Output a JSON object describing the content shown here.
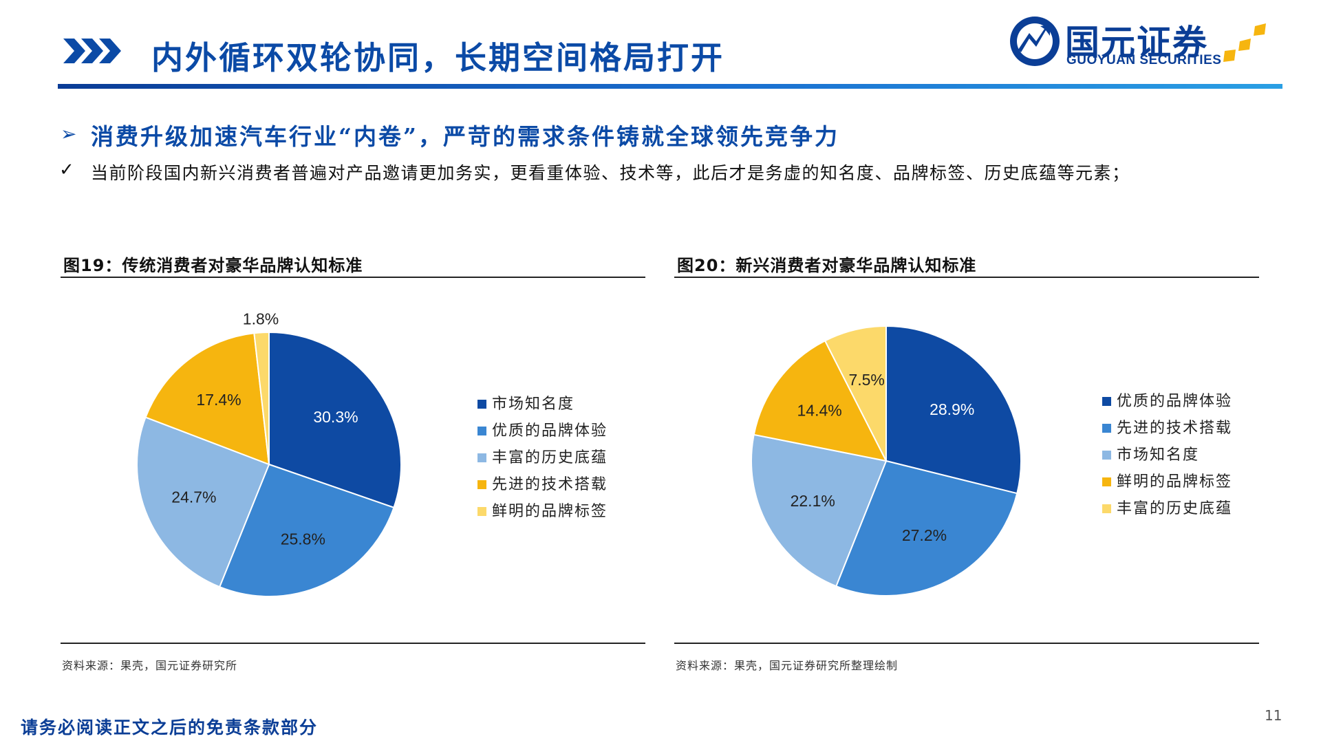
{
  "header": {
    "title": "内外循环双轮协同，长期空间格局打开",
    "logo_cn": "国元证券",
    "logo_en": "GUOYUAN SECURITIES"
  },
  "section": {
    "heading": "消费升级加速汽车行业“内卷”，严苛的需求条件铸就全球领先竞争力",
    "point": "当前阶段国内新兴消费者普遍对产品邀请更加务实，更看重体验、技术等，此后才是务虚的知名度、品牌标签、历史底蕴等元素；"
  },
  "figures": [
    {
      "caption": "图19：传统消费者对豪华品牌认知标准",
      "source": "资料来源：果壳，国元证券研究所"
    },
    {
      "caption": "图20：新兴消费者对豪华品牌认知标准",
      "source": "资料来源：果壳，国元证券研究所整理绘制"
    }
  ],
  "chart_data": [
    {
      "type": "pie",
      "title": "",
      "legend_position": "right",
      "slices": [
        {
          "label": "市场知名度",
          "value": 30.3,
          "display": "30.3%",
          "color": "#0e4aa3"
        },
        {
          "label": "优质的品牌体验",
          "value": 25.8,
          "display": "25.8%",
          "color": "#3a86d2"
        },
        {
          "label": "丰富的历史底蕴",
          "value": 24.7,
          "display": "24.7%",
          "color": "#8db8e3"
        },
        {
          "label": "先进的技术搭载",
          "value": 17.4,
          "display": "17.4%",
          "color": "#f6b50f"
        },
        {
          "label": "鲜明的品牌标签",
          "value": 1.8,
          "display": "1.8%",
          "color": "#fcd96a"
        }
      ]
    },
    {
      "type": "pie",
      "title": "",
      "legend_position": "right",
      "slices": [
        {
          "label": "优质的品牌体验",
          "value": 28.9,
          "display": "28.9%",
          "color": "#0e4aa3"
        },
        {
          "label": "先进的技术搭载",
          "value": 27.2,
          "display": "27.2%",
          "color": "#3a86d2"
        },
        {
          "label": "市场知名度",
          "value": 22.1,
          "display": "22.1%",
          "color": "#8db8e3"
        },
        {
          "label": "鲜明的品牌标签",
          "value": 14.4,
          "display": "14.4%",
          "color": "#f6b50f"
        },
        {
          "label": "丰富的历史底蕴",
          "value": 7.5,
          "display": "7.5%",
          "color": "#fcd96a"
        }
      ]
    }
  ],
  "footer": {
    "disclaimer": "请务必阅读正文之后的免责条款部分",
    "page_number": "11"
  },
  "colors": {
    "brand": "#0b4aa6",
    "accent_gold": "#f6b50f"
  }
}
